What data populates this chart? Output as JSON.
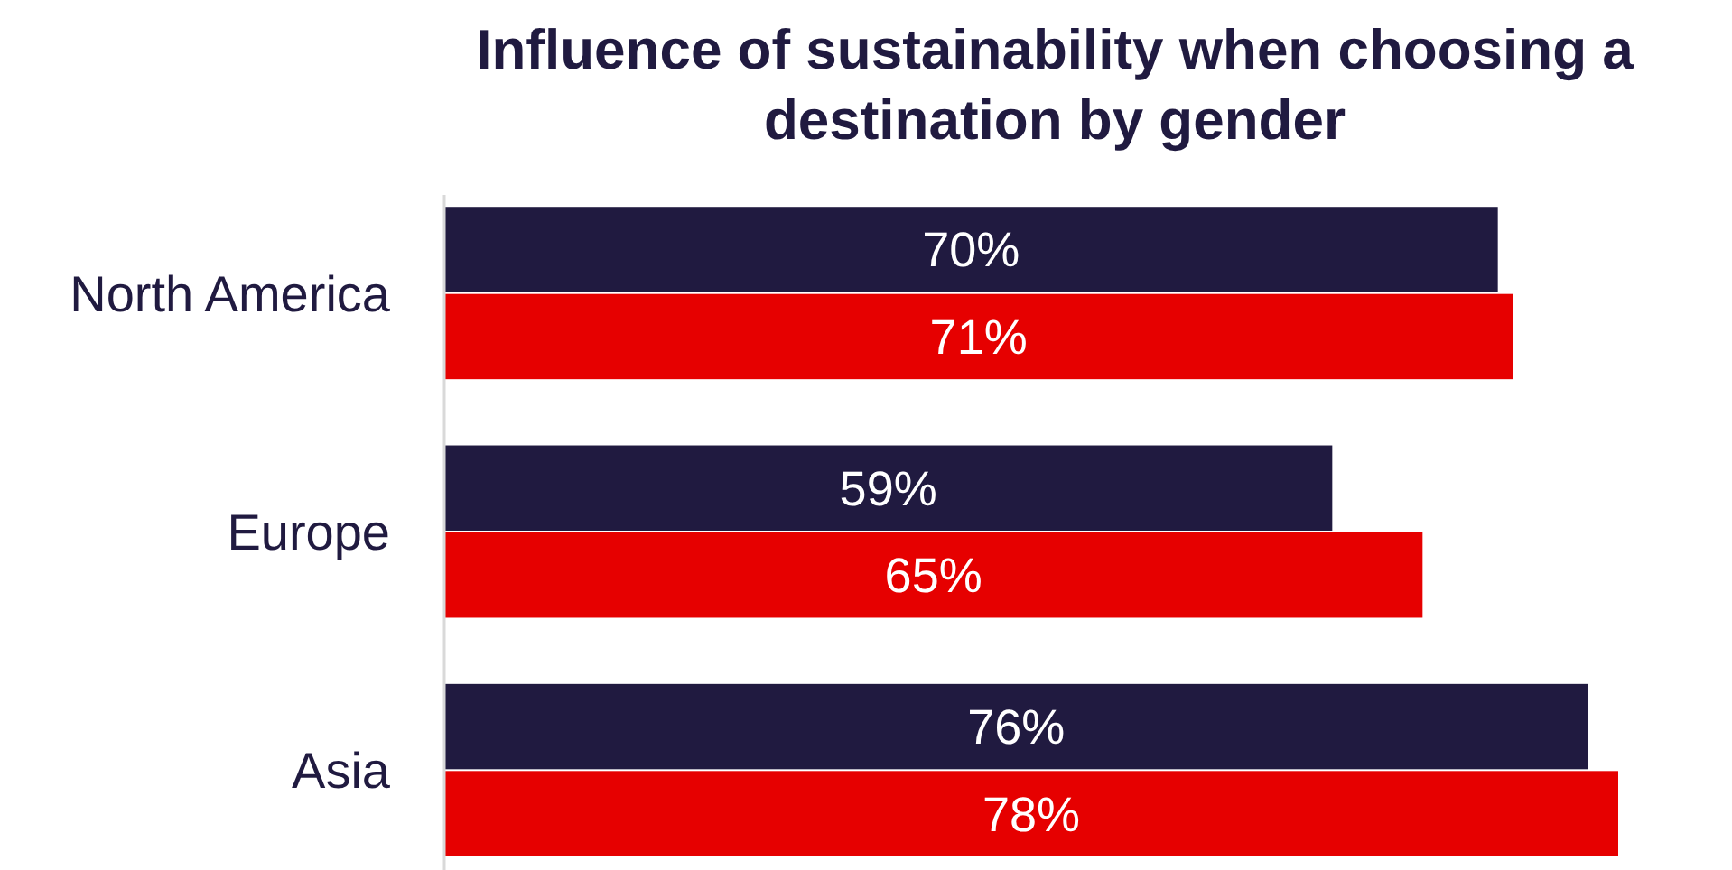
{
  "chart_data": {
    "type": "bar",
    "orientation": "horizontal",
    "title": "Influence of sustainability when choosing a destination by gender",
    "categories": [
      "North America",
      "Europe",
      "Asia"
    ],
    "series": [
      {
        "color": "#201a40",
        "values": [
          70,
          59,
          76
        ],
        "value_labels": [
          "70%",
          "59%",
          "76%"
        ]
      },
      {
        "color": "#e60000",
        "values": [
          71,
          65,
          78
        ],
        "value_labels": [
          "71%",
          "65%",
          "78%"
        ]
      }
    ]
  }
}
